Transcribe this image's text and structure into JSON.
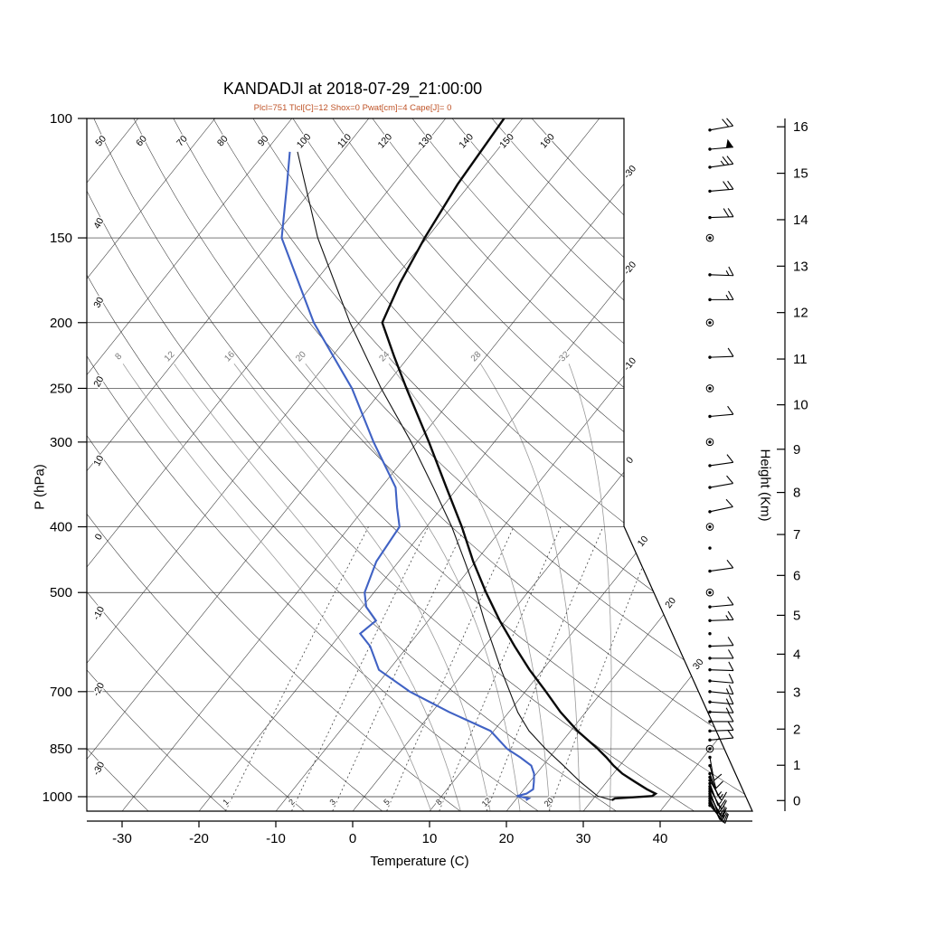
{
  "chart_data": {
    "type": "skewt-logp",
    "title": "KANDADJI at 2018-07-29_21:00:00",
    "info_line": "Plcl=751 Tlcl[C]=12 Shox=0 Pwat[cm]=4 Cape[J]= 0",
    "colors": {
      "temperature": "#0a0a0a",
      "dewpoint": "#4062c4",
      "parcel": "#111111",
      "info_text": "#bf5327",
      "moist_adiabat": "#9a9a9a",
      "mixing_ratio": "#444444",
      "grid": "#2a2a2a",
      "background": "#ffffff"
    },
    "x_axis": {
      "label": "Temperature (C)",
      "unit": "C",
      "ticks": [
        -30,
        -20,
        -10,
        0,
        10,
        20,
        30,
        40
      ]
    },
    "y_axis": {
      "label": "P (hPa)",
      "scale": "log",
      "range": [
        100,
        1050
      ],
      "ticks": [
        100,
        150,
        200,
        250,
        300,
        400,
        500,
        700,
        850,
        1000
      ]
    },
    "height_axis": {
      "label": "Height (Km)",
      "unit": "km",
      "ticks": [
        0,
        1,
        2,
        3,
        4,
        5,
        6,
        7,
        8,
        9,
        10,
        11,
        12,
        13,
        14,
        15,
        16
      ]
    },
    "isotherm_edge_labels": [
      -30,
      -20,
      -10,
      0,
      10,
      20,
      30
    ],
    "dry_adiabat_labels": [
      -30,
      -20,
      -10,
      0,
      10,
      20,
      30,
      40,
      50,
      60,
      70,
      80,
      90,
      100,
      110,
      120,
      130,
      140,
      150,
      160
    ],
    "moist_adiabat_values": [
      8,
      12,
      16,
      20,
      24,
      28,
      32
    ],
    "mixing_ratio_values": [
      1,
      2,
      3,
      5,
      8,
      12,
      20
    ],
    "sounding": {
      "temperature_C_by_hPa": [
        [
          1012,
          32.6
        ],
        [
          1006,
          32.8
        ],
        [
          998,
          37.4
        ],
        [
          990,
          37.6
        ],
        [
          975,
          36.0
        ],
        [
          950,
          33.6
        ],
        [
          925,
          31.2
        ],
        [
          900,
          29.2
        ],
        [
          875,
          27.4
        ],
        [
          850,
          25.4
        ],
        [
          800,
          20.9
        ],
        [
          750,
          16.7
        ],
        [
          700,
          12.7
        ],
        [
          650,
          8.3
        ],
        [
          600,
          3.9
        ],
        [
          550,
          -0.7
        ],
        [
          500,
          -5.4
        ],
        [
          450,
          -10.3
        ],
        [
          400,
          -15.4
        ],
        [
          350,
          -21.5
        ],
        [
          300,
          -28.5
        ],
        [
          250,
          -37.0
        ],
        [
          225,
          -41.8
        ],
        [
          200,
          -47.0
        ],
        [
          175,
          -48.8
        ],
        [
          150,
          -50.3
        ],
        [
          125,
          -51.6
        ],
        [
          100,
          -52.4
        ]
      ],
      "dewpoint_C_by_hPa": [
        [
          1012,
          21.4
        ],
        [
          1006,
          21.6
        ],
        [
          998,
          19.8
        ],
        [
          990,
          20.8
        ],
        [
          975,
          21.2
        ],
        [
          950,
          20.5
        ],
        [
          925,
          19.7
        ],
        [
          900,
          18.5
        ],
        [
          875,
          16.2
        ],
        [
          850,
          13.6
        ],
        [
          800,
          9.6
        ],
        [
          750,
          2.2
        ],
        [
          700,
          -5.0
        ],
        [
          650,
          -11.3
        ],
        [
          600,
          -14.9
        ],
        [
          575,
          -17.5
        ],
        [
          550,
          -16.8
        ],
        [
          525,
          -19.5
        ],
        [
          500,
          -21.2
        ],
        [
          450,
          -22.9
        ],
        [
          400,
          -23.5
        ],
        [
          375,
          -25.8
        ],
        [
          350,
          -28.1
        ],
        [
          300,
          -35.7
        ],
        [
          250,
          -44.1
        ],
        [
          200,
          -55.9
        ],
        [
          150,
          -68.9
        ],
        [
          125,
          -73.8
        ],
        [
          112,
          -76.8
        ]
      ],
      "parcel_C_by_hPa": [
        [
          1012,
          32.6
        ],
        [
          998,
          30.3
        ],
        [
          950,
          26.5
        ],
        [
          900,
          22.7
        ],
        [
          850,
          18.6
        ],
        [
          800,
          14.6
        ],
        [
          751,
          11.2
        ],
        [
          700,
          8.0
        ],
        [
          650,
          4.6
        ],
        [
          600,
          1.1
        ],
        [
          550,
          -2.7
        ],
        [
          500,
          -6.7
        ],
        [
          450,
          -11.4
        ],
        [
          400,
          -16.7
        ],
        [
          350,
          -23.2
        ],
        [
          300,
          -30.8
        ],
        [
          250,
          -40.3
        ],
        [
          200,
          -51.2
        ],
        [
          150,
          -64.2
        ],
        [
          112,
          -75.8
        ]
      ]
    },
    "wind_barbs_kt": [
      [
        1030,
        15,
        140
      ],
      [
        1022,
        20,
        145
      ],
      [
        1014,
        15,
        150
      ],
      [
        1006,
        10,
        155
      ],
      [
        998,
        10,
        150
      ],
      [
        990,
        15,
        155
      ],
      [
        982,
        10,
        160
      ],
      [
        974,
        8,
        150
      ],
      [
        966,
        10,
        155
      ],
      [
        956,
        5,
        160
      ],
      [
        946,
        8,
        150
      ],
      [
        936,
        5,
        155
      ],
      [
        925,
        5,
        160
      ],
      [
        900,
        10,
        165
      ],
      [
        875,
        8,
        170
      ],
      [
        850,
        2,
        0
      ],
      [
        825,
        10,
        85
      ],
      [
        800,
        10,
        88
      ],
      [
        775,
        12,
        90
      ],
      [
        750,
        15,
        92
      ],
      [
        725,
        15,
        95
      ],
      [
        700,
        15,
        96
      ],
      [
        675,
        12,
        95
      ],
      [
        650,
        12,
        92
      ],
      [
        625,
        10,
        90
      ],
      [
        600,
        10,
        88
      ],
      [
        575,
        0,
        0
      ],
      [
        550,
        15,
        88
      ],
      [
        525,
        10,
        85
      ],
      [
        500,
        2,
        0
      ],
      [
        465,
        10,
        82
      ],
      [
        430,
        0,
        0
      ],
      [
        400,
        2,
        0
      ],
      [
        380,
        10,
        78
      ],
      [
        350,
        12,
        80
      ],
      [
        325,
        10,
        82
      ],
      [
        300,
        2,
        0
      ],
      [
        275,
        10,
        85
      ],
      [
        250,
        2,
        0
      ],
      [
        225,
        12,
        88
      ],
      [
        200,
        2,
        0
      ],
      [
        185,
        15,
        90
      ],
      [
        170,
        15,
        92
      ],
      [
        150,
        2,
        0
      ],
      [
        140,
        20,
        88
      ],
      [
        128,
        20,
        85
      ],
      [
        118,
        25,
        82
      ],
      [
        111,
        50,
        85
      ],
      [
        104,
        20,
        80
      ]
    ]
  }
}
